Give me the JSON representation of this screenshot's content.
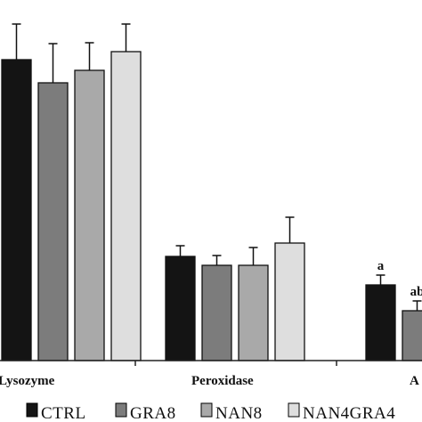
{
  "chart_data": {
    "type": "bar",
    "categories": [
      "Lysozyme",
      "Peroxidase",
      "A"
    ],
    "series": [
      {
        "name": "CTRL",
        "color": "#141414",
        "values": [
          338,
          117,
          85
        ],
        "errors": [
          40,
          12,
          11
        ],
        "labels": [
          "",
          "",
          "a"
        ]
      },
      {
        "name": "GRA8",
        "color": "#7c7c7c",
        "values": [
          312,
          107,
          56
        ],
        "errors": [
          44,
          11,
          11
        ],
        "labels": [
          "",
          "",
          "ab"
        ]
      },
      {
        "name": "NAN8",
        "color": "#a9a9a9",
        "values": [
          326,
          107,
          null
        ],
        "errors": [
          31,
          20,
          null
        ],
        "labels": [
          "",
          "",
          ""
        ]
      },
      {
        "name": "NAN4GRA4",
        "color": "#dedede",
        "values": [
          347,
          132,
          null
        ],
        "errors": [
          31,
          29,
          null
        ],
        "labels": [
          "",
          "",
          ""
        ]
      }
    ],
    "ylim": [
      0,
      400
    ],
    "legend": "bottom",
    "grid": false
  }
}
